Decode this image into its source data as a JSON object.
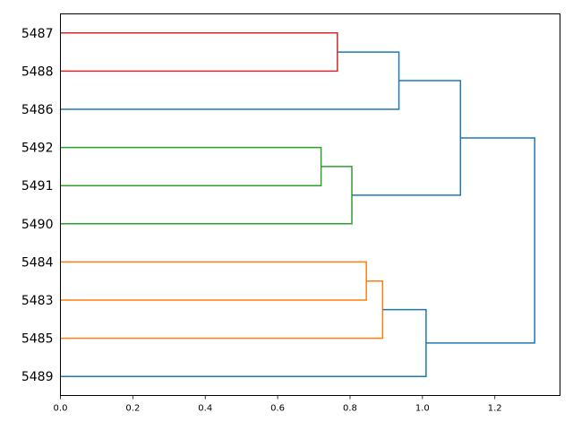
{
  "chart_data": {
    "type": "dendrogram",
    "orientation": "left",
    "title": "",
    "xlabel": "",
    "ylabel": "",
    "xlim": [
      0.0,
      1.38
    ],
    "x_ticks": [
      "0.0",
      "0.2",
      "0.4",
      "0.6",
      "0.8",
      "1.0",
      "1.2"
    ],
    "grid": false,
    "legend": "none",
    "leaves": [
      "5487",
      "5488",
      "5486",
      "5492",
      "5491",
      "5490",
      "5484",
      "5483",
      "5485",
      "5489"
    ],
    "colors": {
      "red": "#d62728",
      "blue": "#1f77b4",
      "green": "#2ca02c",
      "orange": "#ff7f0e"
    },
    "links": [
      {
        "members": [
          "5487",
          "5488"
        ],
        "height": 0.765,
        "color": "red"
      },
      {
        "members": [
          "5487",
          "5488",
          "5486"
        ],
        "height": 0.935,
        "color": "blue"
      },
      {
        "members": [
          "5492",
          "5491"
        ],
        "height": 0.72,
        "color": "green"
      },
      {
        "members": [
          "5492",
          "5491",
          "5490"
        ],
        "height": 0.805,
        "color": "green"
      },
      {
        "members": [
          "5487",
          "5488",
          "5486",
          "5492",
          "5491",
          "5490"
        ],
        "height": 1.105,
        "color": "blue"
      },
      {
        "members": [
          "5484",
          "5483"
        ],
        "height": 0.845,
        "color": "orange"
      },
      {
        "members": [
          "5484",
          "5483",
          "5485"
        ],
        "height": 0.89,
        "color": "orange"
      },
      {
        "members": [
          "5484",
          "5483",
          "5485",
          "5489"
        ],
        "height": 1.01,
        "color": "blue"
      },
      {
        "members": [
          "5487",
          "5488",
          "5486",
          "5492",
          "5491",
          "5490",
          "5484",
          "5483",
          "5485",
          "5489"
        ],
        "height": 1.31,
        "color": "blue"
      }
    ]
  }
}
